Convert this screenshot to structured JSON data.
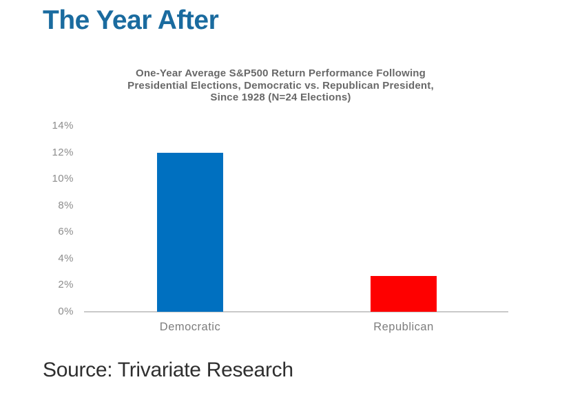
{
  "page": {
    "title": "The Year After",
    "title_color": "#1a6b9f",
    "source": "Source: Trivariate Research",
    "background": "#ffffff"
  },
  "chart_data": {
    "type": "bar",
    "title": "One-Year Average S&P500 Return Performance Following Presidential Elections, Democratic vs. Republican President, Since 1928 (N=24 Elections)",
    "title_lines": [
      "One-Year Average S&P500 Return Performance Following",
      "Presidential Elections, Democratic vs. Republican President,",
      "Since 1928 (N=24 Elections)"
    ],
    "categories": [
      "Democratic",
      "Republican"
    ],
    "values": [
      12,
      2.7
    ],
    "unit": "%",
    "bar_colors": [
      "#0070c0",
      "#fe0000"
    ],
    "xlabel": "",
    "ylabel": "",
    "ylim": [
      0,
      14
    ],
    "ytick_step": 2,
    "ytick_labels": [
      "0%",
      "2%",
      "4%",
      "6%",
      "8%",
      "10%",
      "12%",
      "14%"
    ],
    "grid": false,
    "legend": false,
    "axis_line_color": "#c9c9c9"
  }
}
